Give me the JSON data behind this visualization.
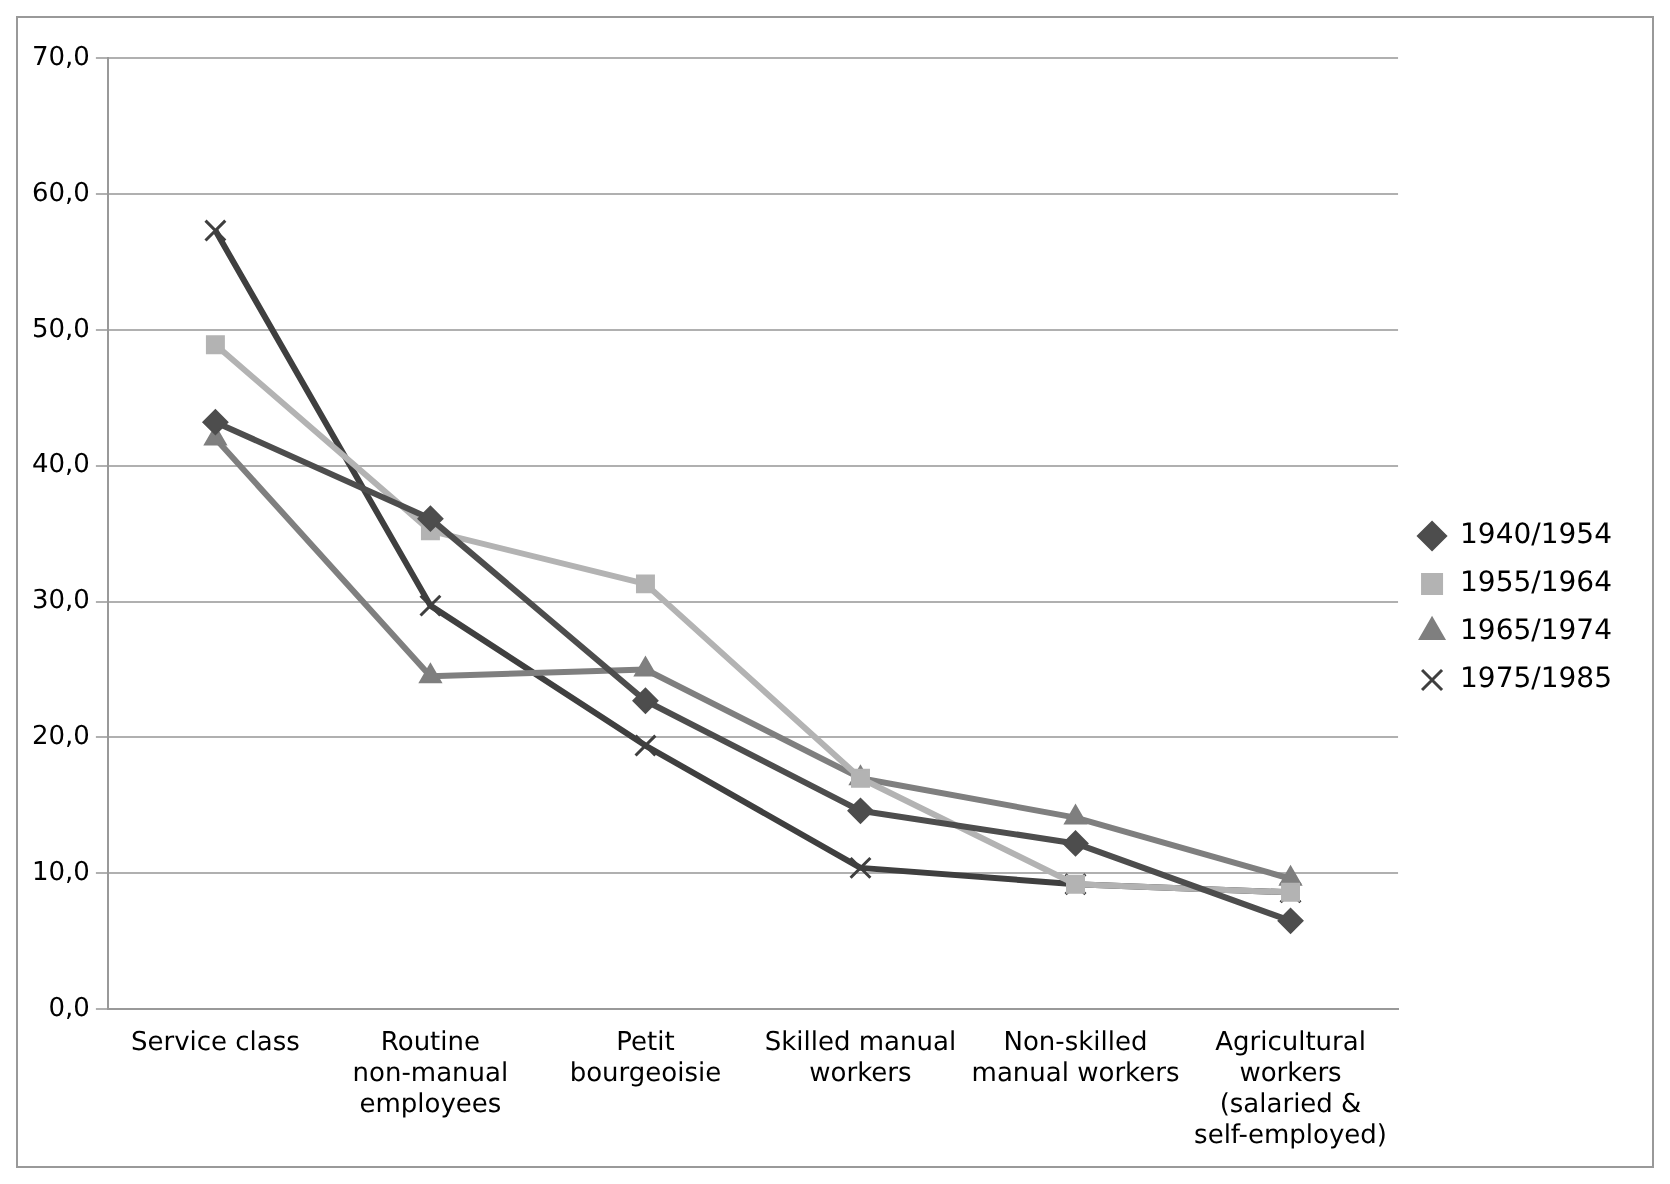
{
  "chart_data": {
    "type": "line",
    "categories": [
      "Service class",
      "Routine non-manual employees",
      "Petit bourgeoisie",
      "Skilled manual workers",
      "Non-skilled manual workers",
      "Agricultural workers (salaried & self-employed)"
    ],
    "series": [
      {
        "name": "1940/1954",
        "color": "#4d4d4d",
        "marker": "diamond",
        "values": [
          43.2,
          36.1,
          22.7,
          14.6,
          12.2,
          6.5
        ]
      },
      {
        "name": "1955/1964",
        "color": "#b3b3b3",
        "marker": "square",
        "values": [
          48.9,
          35.2,
          31.3,
          17.0,
          9.2,
          8.6
        ]
      },
      {
        "name": "1965/1974",
        "color": "#7f7f7f",
        "marker": "triangle",
        "values": [
          42.0,
          24.5,
          25.0,
          17.0,
          14.1,
          9.6
        ]
      },
      {
        "name": "1975/1985",
        "color": "#3f3f3f",
        "marker": "cross",
        "values": [
          57.3,
          29.7,
          19.4,
          10.4,
          9.2,
          8.6
        ]
      }
    ],
    "ylim": [
      0,
      70
    ],
    "yticks": [
      {
        "value": 0,
        "label": "0,0"
      },
      {
        "value": 10,
        "label": "10,0"
      },
      {
        "value": 20,
        "label": "20,0"
      },
      {
        "value": 30,
        "label": "30,0"
      },
      {
        "value": 40,
        "label": "40,0"
      },
      {
        "value": 50,
        "label": "50,0"
      },
      {
        "value": 60,
        "label": "60,0"
      },
      {
        "value": 70,
        "label": "70,0"
      }
    ],
    "grid": "y",
    "legend": "right",
    "line_style": "solid"
  }
}
